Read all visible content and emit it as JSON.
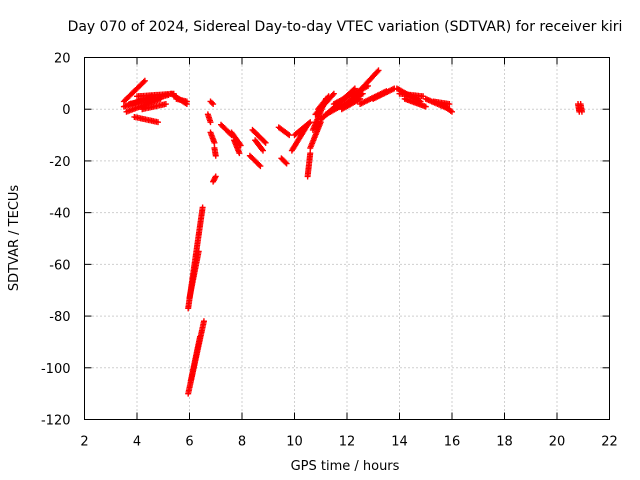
{
  "chart_data": {
    "type": "scatter",
    "title": "Day 070 of 2024, Sidereal Day-to-day VTEC variation (SDTVAR) for receiver kiri",
    "xlabel": "GPS time / hours",
    "ylabel": "SDTVAR / TECUs",
    "xlim": [
      2,
      22
    ],
    "ylim": [
      -120,
      20
    ],
    "x_ticks": [
      2,
      4,
      6,
      8,
      10,
      12,
      14,
      16,
      18,
      20,
      22
    ],
    "y_ticks": [
      -120,
      -100,
      -80,
      -60,
      -40,
      -20,
      0,
      20
    ],
    "x_tick_labels": [
      "2",
      "4",
      "6",
      "8",
      "10",
      "12",
      "14",
      "16",
      "18",
      "20",
      "22"
    ],
    "y_tick_labels": [
      "-120",
      "-100",
      "-80",
      "-60",
      "-40",
      "-20",
      "0",
      "20"
    ],
    "grid": true,
    "marker": "plus",
    "marker_color": "#ff0000",
    "segments": [
      {
        "x0": 3.5,
        "y0": 3,
        "x1": 4.3,
        "y1": 11
      },
      {
        "x0": 3.5,
        "y0": 1,
        "x1": 4.6,
        "y1": 5
      },
      {
        "x0": 3.6,
        "y0": -1,
        "x1": 4.9,
        "y1": 4
      },
      {
        "x0": 3.7,
        "y0": 2,
        "x1": 5.2,
        "y1": 5.5
      },
      {
        "x0": 3.9,
        "y0": -3,
        "x1": 4.8,
        "y1": -5
      },
      {
        "x0": 4.0,
        "y0": 5,
        "x1": 5.4,
        "y1": 6
      },
      {
        "x0": 4.2,
        "y0": 0,
        "x1": 5.1,
        "y1": 2
      },
      {
        "x0": 5.3,
        "y0": 6,
        "x1": 5.9,
        "y1": 2
      },
      {
        "x0": 5.5,
        "y0": 4,
        "x1": 5.9,
        "y1": 3
      },
      {
        "x0": 5.95,
        "y0": -77,
        "x1": 6.5,
        "y1": -38
      },
      {
        "x0": 6.0,
        "y0": -73,
        "x1": 6.35,
        "y1": -55
      },
      {
        "x0": 5.95,
        "y0": -110,
        "x1": 6.55,
        "y1": -82
      },
      {
        "x0": 6.05,
        "y0": -105,
        "x1": 6.4,
        "y1": -88
      },
      {
        "x0": 6.8,
        "y0": 3,
        "x1": 6.9,
        "y1": 2
      },
      {
        "x0": 6.7,
        "y0": -2,
        "x1": 6.8,
        "y1": -5
      },
      {
        "x0": 6.8,
        "y0": -9,
        "x1": 6.95,
        "y1": -13
      },
      {
        "x0": 6.9,
        "y0": -28,
        "x1": 7.0,
        "y1": -26
      },
      {
        "x0": 6.95,
        "y0": -15,
        "x1": 7.0,
        "y1": -18
      },
      {
        "x0": 7.2,
        "y0": -6,
        "x1": 7.6,
        "y1": -10
      },
      {
        "x0": 7.6,
        "y0": -9,
        "x1": 7.95,
        "y1": -14
      },
      {
        "x0": 7.7,
        "y0": -12,
        "x1": 7.9,
        "y1": -17
      },
      {
        "x0": 8.3,
        "y0": -18,
        "x1": 8.7,
        "y1": -22
      },
      {
        "x0": 8.4,
        "y0": -8,
        "x1": 8.9,
        "y1": -13
      },
      {
        "x0": 8.5,
        "y0": -12,
        "x1": 8.8,
        "y1": -16
      },
      {
        "x0": 9.4,
        "y0": -7,
        "x1": 9.8,
        "y1": -10
      },
      {
        "x0": 9.5,
        "y0": -19,
        "x1": 9.7,
        "y1": -21
      },
      {
        "x0": 9.9,
        "y0": -16,
        "x1": 10.5,
        "y1": -6
      },
      {
        "x0": 10.0,
        "y0": -10,
        "x1": 10.6,
        "y1": -5
      },
      {
        "x0": 10.5,
        "y0": -26,
        "x1": 10.6,
        "y1": -17
      },
      {
        "x0": 10.6,
        "y0": -15,
        "x1": 11.0,
        "y1": -5
      },
      {
        "x0": 10.7,
        "y0": -8,
        "x1": 11.2,
        "y1": 4
      },
      {
        "x0": 10.8,
        "y0": -2,
        "x1": 11.5,
        "y1": 6
      },
      {
        "x0": 10.9,
        "y0": 0,
        "x1": 11.3,
        "y1": 5
      },
      {
        "x0": 11.0,
        "y0": -4,
        "x1": 12.3,
        "y1": 8
      },
      {
        "x0": 11.2,
        "y0": -2,
        "x1": 12.6,
        "y1": 6
      },
      {
        "x0": 11.5,
        "y0": 2,
        "x1": 12.8,
        "y1": 9
      },
      {
        "x0": 11.8,
        "y0": 0,
        "x1": 12.5,
        "y1": 4
      },
      {
        "x0": 12.2,
        "y0": 4,
        "x1": 13.2,
        "y1": 15
      },
      {
        "x0": 12.5,
        "y0": 2,
        "x1": 13.5,
        "y1": 7
      },
      {
        "x0": 13.0,
        "y0": 4,
        "x1": 13.8,
        "y1": 8
      },
      {
        "x0": 13.9,
        "y0": 8,
        "x1": 14.8,
        "y1": 3
      },
      {
        "x0": 14.0,
        "y0": 6,
        "x1": 14.9,
        "y1": 5
      },
      {
        "x0": 14.2,
        "y0": 4,
        "x1": 15.0,
        "y1": 1
      },
      {
        "x0": 15.0,
        "y0": 4,
        "x1": 15.9,
        "y1": 0
      },
      {
        "x0": 15.3,
        "y0": 3,
        "x1": 15.9,
        "y1": 2
      },
      {
        "x0": 15.6,
        "y0": 2,
        "x1": 16.0,
        "y1": -1
      },
      {
        "x0": 20.8,
        "y0": 2,
        "x1": 20.85,
        "y1": -1
      },
      {
        "x0": 20.9,
        "y0": 2,
        "x1": 20.95,
        "y1": -1
      }
    ]
  }
}
